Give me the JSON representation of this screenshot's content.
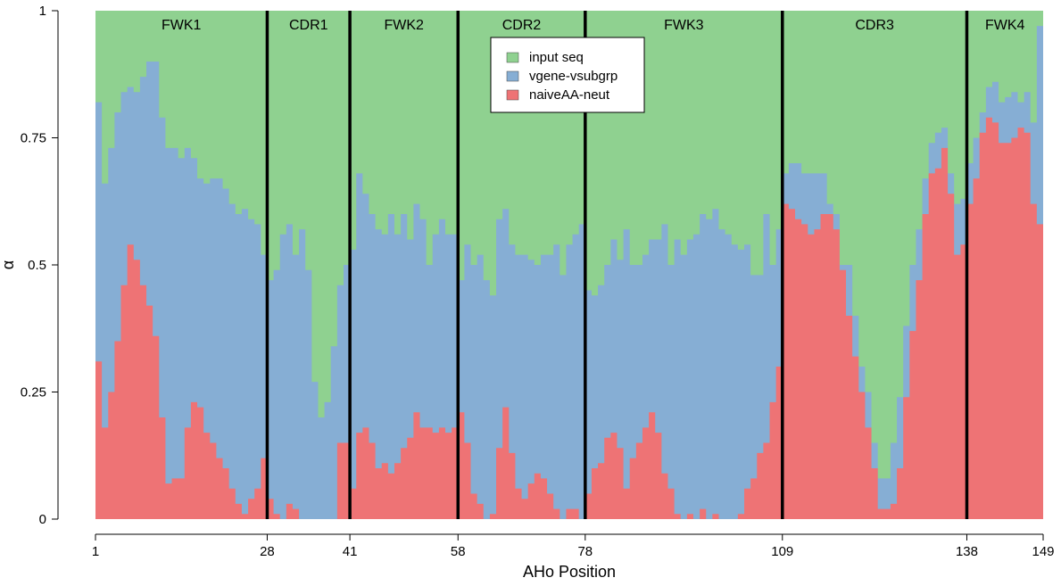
{
  "chart_data": {
    "type": "area",
    "stacked": true,
    "xlabel": "AHo Position",
    "ylabel": "α",
    "xlim": [
      1,
      149
    ],
    "ylim": [
      0,
      1
    ],
    "x_ticks": [
      1,
      28,
      41,
      58,
      78,
      109,
      138,
      149
    ],
    "y_ticks": [
      {
        "value": 0,
        "label": "0"
      },
      {
        "value": 0.25,
        "label": "0.25"
      },
      {
        "value": 0.5,
        "label": "0.5"
      },
      {
        "value": 0.75,
        "label": "0.75"
      },
      {
        "value": 1,
        "label": "1"
      }
    ],
    "regions": [
      {
        "label": "FWK1",
        "start": 1,
        "end": 28
      },
      {
        "label": "CDR1",
        "start": 28,
        "end": 41
      },
      {
        "label": "FWK2",
        "start": 41,
        "end": 58
      },
      {
        "label": "CDR2",
        "start": 58,
        "end": 78
      },
      {
        "label": "FWK3",
        "start": 78,
        "end": 109
      },
      {
        "label": "CDR3",
        "start": 109,
        "end": 138
      },
      {
        "label": "FWK4",
        "start": 138,
        "end": 149
      }
    ],
    "boundaries": [
      28,
      41,
      58,
      78,
      109,
      138
    ],
    "legend": {
      "position": "top-center"
    },
    "series": [
      {
        "name": "input seq",
        "color": "#8fd190"
      },
      {
        "name": "vgene-vsubgrp",
        "color": "#86aed4"
      },
      {
        "name": "naiveAA-neut",
        "color": "#ee7375"
      }
    ],
    "naive_key": [
      [
        1,
        0.31
      ],
      [
        2,
        0.18
      ],
      [
        3,
        0.25
      ],
      [
        4,
        0.35
      ],
      [
        5,
        0.46
      ],
      [
        6,
        0.54
      ],
      [
        7,
        0.51
      ],
      [
        8,
        0.46
      ],
      [
        9,
        0.42
      ],
      [
        10,
        0.36
      ],
      [
        11,
        0.2
      ],
      [
        12,
        0.07
      ],
      [
        13,
        0.08
      ],
      [
        14,
        0.08
      ],
      [
        15,
        0.18
      ],
      [
        16,
        0.23
      ],
      [
        17,
        0.22
      ],
      [
        18,
        0.17
      ],
      [
        19,
        0.15
      ],
      [
        20,
        0.12
      ],
      [
        21,
        0.1
      ],
      [
        22,
        0.06
      ],
      [
        23,
        0.03
      ],
      [
        24,
        0.01
      ],
      [
        25,
        0.04
      ],
      [
        26,
        0.06
      ],
      [
        27,
        0.12
      ],
      [
        28,
        0.04
      ],
      [
        29,
        0.01
      ],
      [
        30,
        0.0
      ],
      [
        31,
        0.03
      ],
      [
        32,
        0.02
      ],
      [
        33,
        0.0
      ],
      [
        34,
        0.0
      ],
      [
        35,
        0.0
      ],
      [
        36,
        0.0
      ],
      [
        37,
        0.0
      ],
      [
        38,
        0.0
      ],
      [
        39,
        0.15
      ],
      [
        40,
        0.15
      ],
      [
        41,
        0.06
      ],
      [
        42,
        0.17
      ],
      [
        43,
        0.18
      ],
      [
        44,
        0.15
      ],
      [
        45,
        0.1
      ],
      [
        46,
        0.11
      ],
      [
        47,
        0.09
      ],
      [
        48,
        0.11
      ],
      [
        49,
        0.14
      ],
      [
        50,
        0.16
      ],
      [
        51,
        0.21
      ],
      [
        52,
        0.18
      ],
      [
        53,
        0.18
      ],
      [
        54,
        0.17
      ],
      [
        55,
        0.18
      ],
      [
        56,
        0.17
      ],
      [
        57,
        0.18
      ],
      [
        58,
        0.21
      ],
      [
        59,
        0.15
      ],
      [
        60,
        0.05
      ],
      [
        61,
        0.03
      ],
      [
        62,
        0.0
      ],
      [
        63,
        0.01
      ],
      [
        64,
        0.14
      ],
      [
        65,
        0.22
      ],
      [
        66,
        0.13
      ],
      [
        67,
        0.06
      ],
      [
        68,
        0.04
      ],
      [
        69,
        0.07
      ],
      [
        70,
        0.09
      ],
      [
        71,
        0.08
      ],
      [
        72,
        0.05
      ],
      [
        73,
        0.02
      ],
      [
        74,
        0.0
      ],
      [
        75,
        0.02
      ],
      [
        76,
        0.02
      ],
      [
        77,
        0.0
      ],
      [
        78,
        0.05
      ],
      [
        79,
        0.1
      ],
      [
        80,
        0.11
      ],
      [
        81,
        0.16
      ],
      [
        82,
        0.17
      ],
      [
        83,
        0.14
      ],
      [
        84,
        0.06
      ],
      [
        85,
        0.12
      ],
      [
        86,
        0.15
      ],
      [
        87,
        0.18
      ],
      [
        88,
        0.21
      ],
      [
        89,
        0.17
      ],
      [
        90,
        0.09
      ],
      [
        91,
        0.06
      ],
      [
        92,
        0.01
      ],
      [
        93,
        0.0
      ],
      [
        94,
        0.01
      ],
      [
        95,
        0.0
      ],
      [
        96,
        0.02
      ],
      [
        97,
        0.0
      ],
      [
        98,
        0.01
      ],
      [
        99,
        0.0
      ],
      [
        100,
        0.0
      ],
      [
        101,
        0.0
      ],
      [
        102,
        0.01
      ],
      [
        103,
        0.06
      ],
      [
        104,
        0.08
      ],
      [
        105,
        0.13
      ],
      [
        106,
        0.15
      ],
      [
        107,
        0.23
      ],
      [
        108,
        0.3
      ],
      [
        109,
        0.62
      ],
      [
        110,
        0.61
      ],
      [
        111,
        0.59
      ],
      [
        112,
        0.58
      ],
      [
        113,
        0.56
      ],
      [
        114,
        0.57
      ],
      [
        115,
        0.6
      ],
      [
        116,
        0.6
      ],
      [
        117,
        0.57
      ],
      [
        118,
        0.49
      ],
      [
        119,
        0.4
      ],
      [
        120,
        0.32
      ],
      [
        121,
        0.25
      ],
      [
        122,
        0.18
      ],
      [
        123,
        0.1
      ],
      [
        124,
        0.02
      ],
      [
        125,
        0.02
      ],
      [
        126,
        0.03
      ],
      [
        127,
        0.1
      ],
      [
        128,
        0.24
      ],
      [
        129,
        0.37
      ],
      [
        130,
        0.47
      ],
      [
        131,
        0.6
      ],
      [
        132,
        0.68
      ],
      [
        133,
        0.69
      ],
      [
        134,
        0.73
      ],
      [
        135,
        0.64
      ],
      [
        136,
        0.52
      ],
      [
        137,
        0.54
      ],
      [
        138,
        0.62
      ],
      [
        139,
        0.67
      ],
      [
        140,
        0.76
      ],
      [
        141,
        0.79
      ],
      [
        142,
        0.78
      ],
      [
        143,
        0.74
      ],
      [
        144,
        0.74
      ],
      [
        145,
        0.75
      ],
      [
        146,
        0.77
      ],
      [
        147,
        0.76
      ],
      [
        148,
        0.62
      ],
      [
        149,
        0.58
      ]
    ],
    "total_key": [
      [
        1,
        0.82
      ],
      [
        2,
        0.66
      ],
      [
        3,
        0.73
      ],
      [
        4,
        0.8
      ],
      [
        5,
        0.84
      ],
      [
        6,
        0.85
      ],
      [
        7,
        0.84
      ],
      [
        8,
        0.87
      ],
      [
        9,
        0.9
      ],
      [
        10,
        0.9
      ],
      [
        11,
        0.79
      ],
      [
        12,
        0.73
      ],
      [
        13,
        0.73
      ],
      [
        14,
        0.71
      ],
      [
        15,
        0.73
      ],
      [
        16,
        0.71
      ],
      [
        17,
        0.67
      ],
      [
        18,
        0.66
      ],
      [
        19,
        0.67
      ],
      [
        20,
        0.67
      ],
      [
        21,
        0.65
      ],
      [
        22,
        0.62
      ],
      [
        23,
        0.6
      ],
      [
        24,
        0.61
      ],
      [
        25,
        0.59
      ],
      [
        26,
        0.58
      ],
      [
        27,
        0.52
      ],
      [
        28,
        0.47
      ],
      [
        29,
        0.49
      ],
      [
        30,
        0.56
      ],
      [
        31,
        0.58
      ],
      [
        32,
        0.52
      ],
      [
        33,
        0.57
      ],
      [
        34,
        0.49
      ],
      [
        35,
        0.27
      ],
      [
        36,
        0.2
      ],
      [
        37,
        0.23
      ],
      [
        38,
        0.34
      ],
      [
        39,
        0.46
      ],
      [
        40,
        0.5
      ],
      [
        41,
        0.53
      ],
      [
        42,
        0.68
      ],
      [
        43,
        0.64
      ],
      [
        44,
        0.6
      ],
      [
        45,
        0.57
      ],
      [
        46,
        0.56
      ],
      [
        47,
        0.6
      ],
      [
        48,
        0.56
      ],
      [
        49,
        0.6
      ],
      [
        50,
        0.55
      ],
      [
        51,
        0.62
      ],
      [
        52,
        0.59
      ],
      [
        53,
        0.5
      ],
      [
        54,
        0.56
      ],
      [
        55,
        0.59
      ],
      [
        56,
        0.56
      ],
      [
        57,
        0.56
      ],
      [
        58,
        0.47
      ],
      [
        59,
        0.54
      ],
      [
        60,
        0.5
      ],
      [
        61,
        0.52
      ],
      [
        62,
        0.47
      ],
      [
        63,
        0.44
      ],
      [
        64,
        0.59
      ],
      [
        65,
        0.61
      ],
      [
        66,
        0.54
      ],
      [
        67,
        0.52
      ],
      [
        68,
        0.52
      ],
      [
        69,
        0.51
      ],
      [
        70,
        0.5
      ],
      [
        71,
        0.52
      ],
      [
        72,
        0.52
      ],
      [
        73,
        0.54
      ],
      [
        74,
        0.48
      ],
      [
        75,
        0.54
      ],
      [
        76,
        0.56
      ],
      [
        77,
        0.58
      ],
      [
        78,
        0.45
      ],
      [
        79,
        0.44
      ],
      [
        80,
        0.46
      ],
      [
        81,
        0.5
      ],
      [
        82,
        0.55
      ],
      [
        83,
        0.51
      ],
      [
        84,
        0.57
      ],
      [
        85,
        0.5
      ],
      [
        86,
        0.5
      ],
      [
        87,
        0.52
      ],
      [
        88,
        0.55
      ],
      [
        89,
        0.55
      ],
      [
        90,
        0.58
      ],
      [
        91,
        0.5
      ],
      [
        92,
        0.55
      ],
      [
        93,
        0.52
      ],
      [
        94,
        0.55
      ],
      [
        95,
        0.56
      ],
      [
        96,
        0.6
      ],
      [
        97,
        0.59
      ],
      [
        98,
        0.61
      ],
      [
        99,
        0.57
      ],
      [
        100,
        0.56
      ],
      [
        101,
        0.54
      ],
      [
        102,
        0.53
      ],
      [
        103,
        0.54
      ],
      [
        104,
        0.48
      ],
      [
        105,
        0.48
      ],
      [
        106,
        0.6
      ],
      [
        107,
        0.5
      ],
      [
        108,
        0.57
      ],
      [
        109,
        0.68
      ],
      [
        110,
        0.7
      ],
      [
        111,
        0.7
      ],
      [
        112,
        0.68
      ],
      [
        113,
        0.68
      ],
      [
        114,
        0.68
      ],
      [
        115,
        0.68
      ],
      [
        116,
        0.62
      ],
      [
        117,
        0.6
      ],
      [
        118,
        0.5
      ],
      [
        119,
        0.5
      ],
      [
        120,
        0.4
      ],
      [
        121,
        0.3
      ],
      [
        122,
        0.25
      ],
      [
        123,
        0.15
      ],
      [
        124,
        0.08
      ],
      [
        125,
        0.08
      ],
      [
        126,
        0.15
      ],
      [
        127,
        0.24
      ],
      [
        128,
        0.38
      ],
      [
        129,
        0.5
      ],
      [
        130,
        0.57
      ],
      [
        131,
        0.67
      ],
      [
        132,
        0.74
      ],
      [
        133,
        0.76
      ],
      [
        134,
        0.77
      ],
      [
        135,
        0.68
      ],
      [
        136,
        0.62
      ],
      [
        137,
        0.63
      ],
      [
        138,
        0.7
      ],
      [
        139,
        0.75
      ],
      [
        140,
        0.8
      ],
      [
        141,
        0.85
      ],
      [
        142,
        0.86
      ],
      [
        143,
        0.82
      ],
      [
        144,
        0.83
      ],
      [
        145,
        0.84
      ],
      [
        146,
        0.82
      ],
      [
        147,
        0.84
      ],
      [
        148,
        0.78
      ],
      [
        149,
        0.97
      ]
    ]
  }
}
